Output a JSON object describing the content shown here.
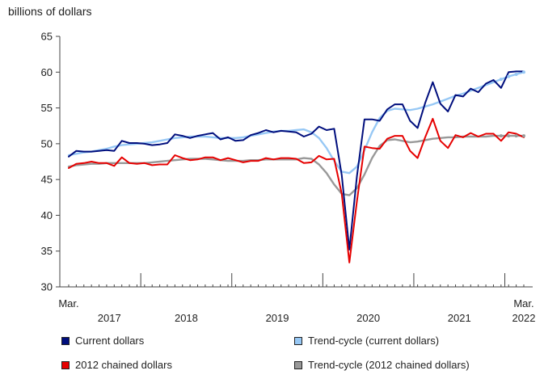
{
  "chart_data": {
    "type": "line",
    "title": "",
    "ylabel": "billions of dollars",
    "xlabel": "",
    "ylim": [
      30,
      65
    ],
    "yticks": [
      30,
      35,
      40,
      45,
      50,
      55,
      60,
      65
    ],
    "x_start_label": {
      "month": "Mar.",
      "year": "2017"
    },
    "x_end_label": {
      "month": "Mar.",
      "year": "2022"
    },
    "year_labels": [
      "2017",
      "2018",
      "2019",
      "2020",
      "2021"
    ],
    "x": [
      "2017-03",
      "2017-04",
      "2017-05",
      "2017-06",
      "2017-07",
      "2017-08",
      "2017-09",
      "2017-10",
      "2017-11",
      "2017-12",
      "2018-01",
      "2018-02",
      "2018-03",
      "2018-04",
      "2018-05",
      "2018-06",
      "2018-07",
      "2018-08",
      "2018-09",
      "2018-10",
      "2018-11",
      "2018-12",
      "2019-01",
      "2019-02",
      "2019-03",
      "2019-04",
      "2019-05",
      "2019-06",
      "2019-07",
      "2019-08",
      "2019-09",
      "2019-10",
      "2019-11",
      "2019-12",
      "2020-01",
      "2020-02",
      "2020-03",
      "2020-04",
      "2020-05",
      "2020-06",
      "2020-07",
      "2020-08",
      "2020-09",
      "2020-10",
      "2020-11",
      "2020-12",
      "2021-01",
      "2021-02",
      "2021-03",
      "2021-04",
      "2021-05",
      "2021-06",
      "2021-07",
      "2021-08",
      "2021-09",
      "2021-10",
      "2021-11",
      "2021-12",
      "2022-01",
      "2022-02",
      "2022-03"
    ],
    "series": [
      {
        "name": "Current dollars",
        "color": "#000e7d",
        "style": "solid",
        "values": [
          48.2,
          49.0,
          48.9,
          48.9,
          49.0,
          49.1,
          49.0,
          50.4,
          50.1,
          50.1,
          50.0,
          49.8,
          49.9,
          50.1,
          51.3,
          51.1,
          50.8,
          51.1,
          51.3,
          51.5,
          50.6,
          50.9,
          50.4,
          50.5,
          51.2,
          51.5,
          51.9,
          51.6,
          51.8,
          51.7,
          51.6,
          51.0,
          51.4,
          52.4,
          51.9,
          52.1,
          45.6,
          35.2,
          45.5,
          53.4,
          53.4,
          53.2,
          54.8,
          55.5,
          55.5,
          53.2,
          52.2,
          55.7,
          58.6,
          55.6,
          54.5,
          56.8,
          56.6,
          57.7,
          57.2,
          58.4,
          58.9,
          57.8,
          60.0,
          60.1,
          60.1
        ]
      },
      {
        "name": "Trend-cycle (current dollars)",
        "color": "#97c8f5",
        "style": "solid-thick",
        "values": [
          48.4,
          48.6,
          48.8,
          48.9,
          49.1,
          49.3,
          49.6,
          49.8,
          49.9,
          50.0,
          50.1,
          50.2,
          50.4,
          50.6,
          50.8,
          50.9,
          51.0,
          51.0,
          51.0,
          50.9,
          50.8,
          50.8,
          50.8,
          50.9,
          51.1,
          51.3,
          51.5,
          51.7,
          51.8,
          51.8,
          51.9,
          52.0,
          51.6,
          50.8,
          49.4,
          47.6,
          46.1,
          45.9,
          46.8,
          49.1,
          51.6,
          53.6,
          54.6,
          54.9,
          54.8,
          54.7,
          54.9,
          55.2,
          55.5,
          55.9,
          56.3,
          56.7,
          57.0,
          57.4,
          57.8,
          58.2,
          58.6,
          59.0,
          59.4,
          59.7,
          60.0
        ]
      },
      {
        "name": "2012 chained dollars",
        "color": "#e60000",
        "style": "solid",
        "values": [
          46.6,
          47.2,
          47.3,
          47.5,
          47.3,
          47.3,
          46.9,
          48.1,
          47.3,
          47.2,
          47.3,
          47.0,
          47.1,
          47.1,
          48.4,
          48.0,
          47.7,
          47.8,
          48.1,
          48.1,
          47.7,
          48.0,
          47.7,
          47.4,
          47.6,
          47.6,
          48.0,
          47.8,
          48.0,
          48.0,
          47.9,
          47.3,
          47.4,
          48.3,
          47.8,
          47.9,
          43.0,
          33.4,
          42.0,
          49.6,
          49.4,
          49.3,
          50.7,
          51.1,
          51.1,
          49.0,
          48.0,
          50.9,
          53.5,
          50.4,
          49.4,
          51.2,
          50.9,
          51.5,
          51.0,
          51.4,
          51.4,
          50.4,
          51.6,
          51.4,
          50.9
        ]
      },
      {
        "name": "Trend-cycle (2012 chained dollars)",
        "color": "#999999",
        "style": "solid-thick",
        "values": [
          46.8,
          47.0,
          47.1,
          47.2,
          47.2,
          47.3,
          47.3,
          47.3,
          47.3,
          47.3,
          47.3,
          47.4,
          47.5,
          47.6,
          47.7,
          47.8,
          47.9,
          47.9,
          47.9,
          47.8,
          47.7,
          47.6,
          47.6,
          47.6,
          47.7,
          47.7,
          47.8,
          47.8,
          47.8,
          47.8,
          47.8,
          48.0,
          47.9,
          47.1,
          45.9,
          44.3,
          43.0,
          42.8,
          43.8,
          45.7,
          48.0,
          49.7,
          50.5,
          50.6,
          50.4,
          50.2,
          50.3,
          50.5,
          50.7,
          50.8,
          50.9,
          50.9,
          51.0,
          51.0,
          51.0,
          51.0,
          51.1,
          51.1,
          51.1,
          51.1,
          51.1
        ]
      }
    ],
    "legend_position": "bottom",
    "grid": false
  },
  "legend": {
    "current": "Current dollars",
    "trend_current": "Trend-cycle (current dollars)",
    "chained": "2012 chained dollars",
    "trend_chained": "Trend-cycle (2012 chained dollars)"
  }
}
